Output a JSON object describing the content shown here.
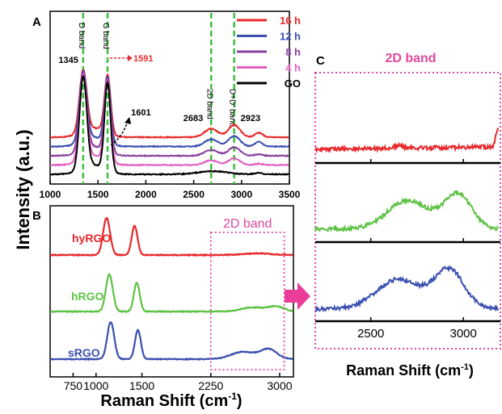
{
  "figure": {
    "shared_ylabel": "Intensity (a.u.)"
  },
  "chart_data": [
    {
      "panel": "A",
      "type": "line",
      "xlabel": "",
      "ylabel": "",
      "xlim": [
        1000,
        3500
      ],
      "xticks": [
        "1000",
        "1500",
        "2000",
        "2500",
        "3000",
        "3500"
      ],
      "band_lines": [
        {
          "label": "D band",
          "x": 1345
        },
        {
          "label": "G band",
          "x": 1600
        },
        {
          "label": "2D band",
          "x": 2683
        },
        {
          "label": "D+D' band",
          "x": 2923
        }
      ],
      "annotations": [
        {
          "text": "1345",
          "x": 1345
        },
        {
          "text": "1591",
          "x": 1591,
          "color": "#e8282b"
        },
        {
          "text": "1601",
          "x": 1601
        },
        {
          "text": "2683",
          "x": 2683
        },
        {
          "text": "2923",
          "x": 2923
        }
      ],
      "series": [
        {
          "name": "16 h",
          "color": "#e8282b",
          "offset": 0.44
        },
        {
          "name": "12 h",
          "color": "#3a4fb0",
          "offset": 0.33
        },
        {
          "name": "8 h",
          "color": "#8a3fa0",
          "offset": 0.22
        },
        {
          "name": "4 h",
          "color": "#e060c0",
          "offset": 0.11
        },
        {
          "name": "GO",
          "color": "#000000",
          "offset": 0.0
        }
      ],
      "legend_position": "top-right"
    },
    {
      "panel": "B",
      "type": "line",
      "xlabel": "Raman Shift (cm",
      "xlabel_sup": "-1",
      "xlabel_end": ")",
      "xlim": [
        500,
        3150
      ],
      "xticks": [
        "750",
        "1000",
        "1500",
        "2250",
        "3000"
      ],
      "xtick_values": [
        750,
        1000,
        1500,
        2250,
        3000
      ],
      "highlight": {
        "label": "2D band",
        "x0": 2250,
        "x1": 3050
      },
      "series": [
        {
          "name": "hyRGO",
          "color": "#e8282b"
        },
        {
          "name": "hRGO",
          "color": "#5cc244"
        },
        {
          "name": "sRGO",
          "color": "#3a4fb0"
        }
      ]
    },
    {
      "panel": "C",
      "type": "line",
      "title": "2D band",
      "xlabel": "Raman Shift (cm",
      "xlabel_sup": "-1",
      "xlabel_end": ")",
      "xlim": [
        2200,
        3200
      ],
      "xticks": [
        "2500",
        "3000"
      ],
      "series": [
        {
          "name": "hyRGO",
          "color": "#e8282b"
        },
        {
          "name": "hRGO",
          "color": "#5cc244"
        },
        {
          "name": "sRGO",
          "color": "#3a4fb0"
        }
      ]
    }
  ]
}
